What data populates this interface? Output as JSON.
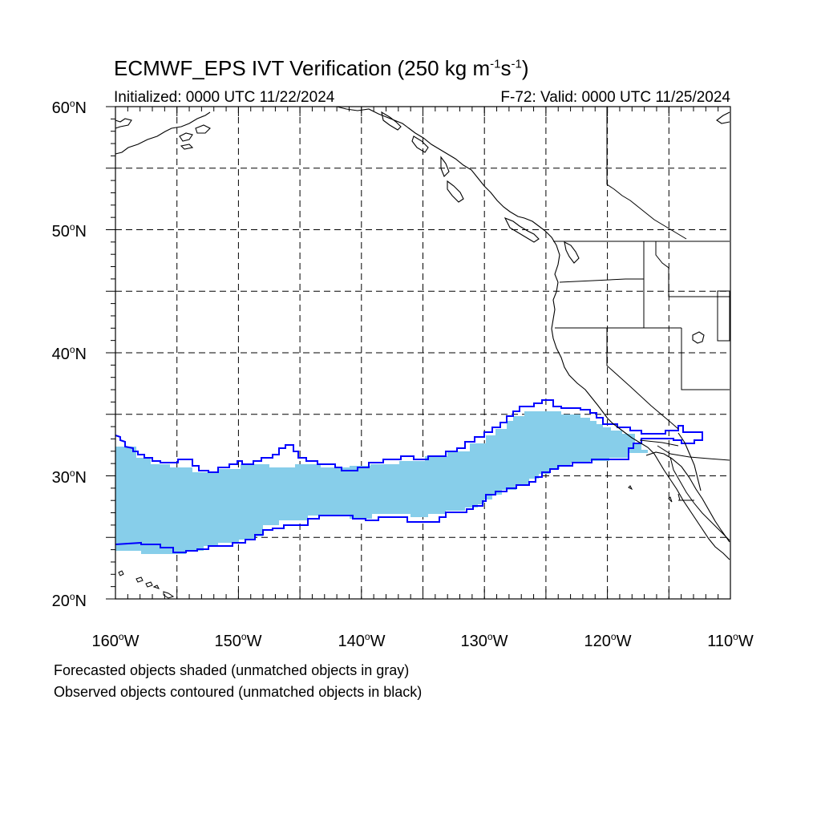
{
  "title": {
    "prefix": "ECMWF_EPS IVT Verification (250 kg m",
    "exp1": "-1",
    "mid": "s",
    "exp2": "-1",
    "suffix": ")"
  },
  "subtitle": {
    "initialized": "Initialized: 0000 UTC 11/22/2024",
    "valid": "F-72: Valid: 0000 UTC 11/25/2024"
  },
  "map": {
    "lat_range": [
      20,
      60
    ],
    "lon_range": [
      -160,
      -110
    ],
    "lat_labels": [
      {
        "num": "60",
        "hemi": "N",
        "value": 60
      },
      {
        "num": "50",
        "hemi": "N",
        "value": 50
      },
      {
        "num": "40",
        "hemi": "N",
        "value": 40
      },
      {
        "num": "30",
        "hemi": "N",
        "value": 30
      },
      {
        "num": "20",
        "hemi": "N",
        "value": 20
      }
    ],
    "lon_labels": [
      {
        "num": "160",
        "hemi": "W",
        "value": -160
      },
      {
        "num": "150",
        "hemi": "W",
        "value": -150
      },
      {
        "num": "140",
        "hemi": "W",
        "value": -140
      },
      {
        "num": "130",
        "hemi": "W",
        "value": -130
      },
      {
        "num": "120",
        "hemi": "W",
        "value": -120
      },
      {
        "num": "110",
        "hemi": "W",
        "value": -110
      }
    ],
    "gridlines": "dashed every 5 degrees",
    "forecast_fill_color": "#87ceea",
    "observed_contour_color": "#0000ff",
    "coastline_color": "#000000"
  },
  "notes": {
    "forecast": "Forecasted objects shaded (unmatched objects in gray)",
    "observed": "Observed objects contoured (unmatched objects in black)"
  }
}
